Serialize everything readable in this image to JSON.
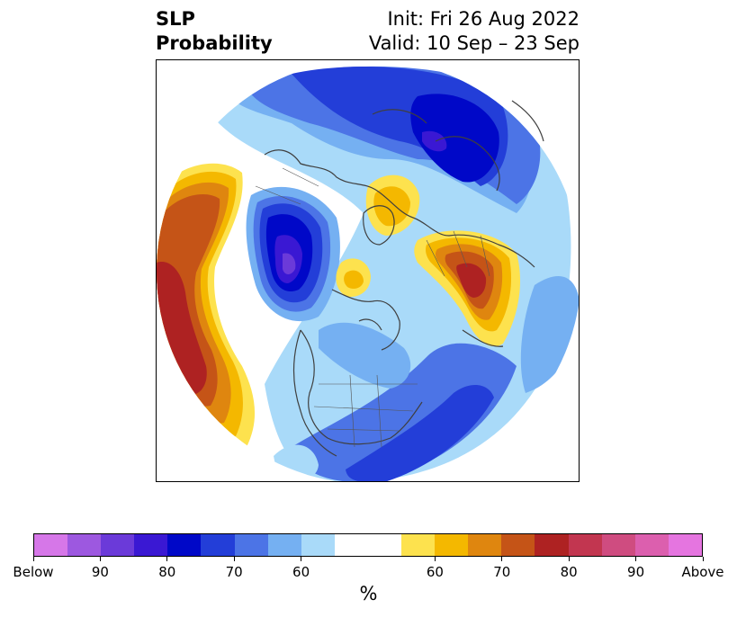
{
  "header": {
    "title_line1": "SLP",
    "title_line2": "Probability",
    "init": "Init: Fri 26 Aug 2022",
    "valid": "Valid: 10 Sep – 23 Sep"
  },
  "colorbar": {
    "colors": [
      "#d677e8",
      "#9d58e0",
      "#6b3ad9",
      "#3a18d3",
      "#0008c8",
      "#233ed8",
      "#4c74e6",
      "#75b0f2",
      "#a9daf9",
      "#ffffff",
      "#ffffff",
      "#fde24e",
      "#f4b800",
      "#df860f",
      "#c55417",
      "#ae2222",
      "#c23650",
      "#cf4c80",
      "#dc5fae",
      "#e575e0"
    ],
    "tick_labels": [
      "Below",
      "90",
      "80",
      "70",
      "60",
      "60",
      "70",
      "80",
      "90",
      "Above"
    ],
    "tick_boundaries": [
      0,
      2,
      4,
      6,
      8,
      12,
      14,
      16,
      18,
      20
    ],
    "unit": "%"
  },
  "colors": {
    "below_strong": "#0008c8",
    "above_strong": "#ae2222",
    "neutral": "#ffffff"
  }
}
